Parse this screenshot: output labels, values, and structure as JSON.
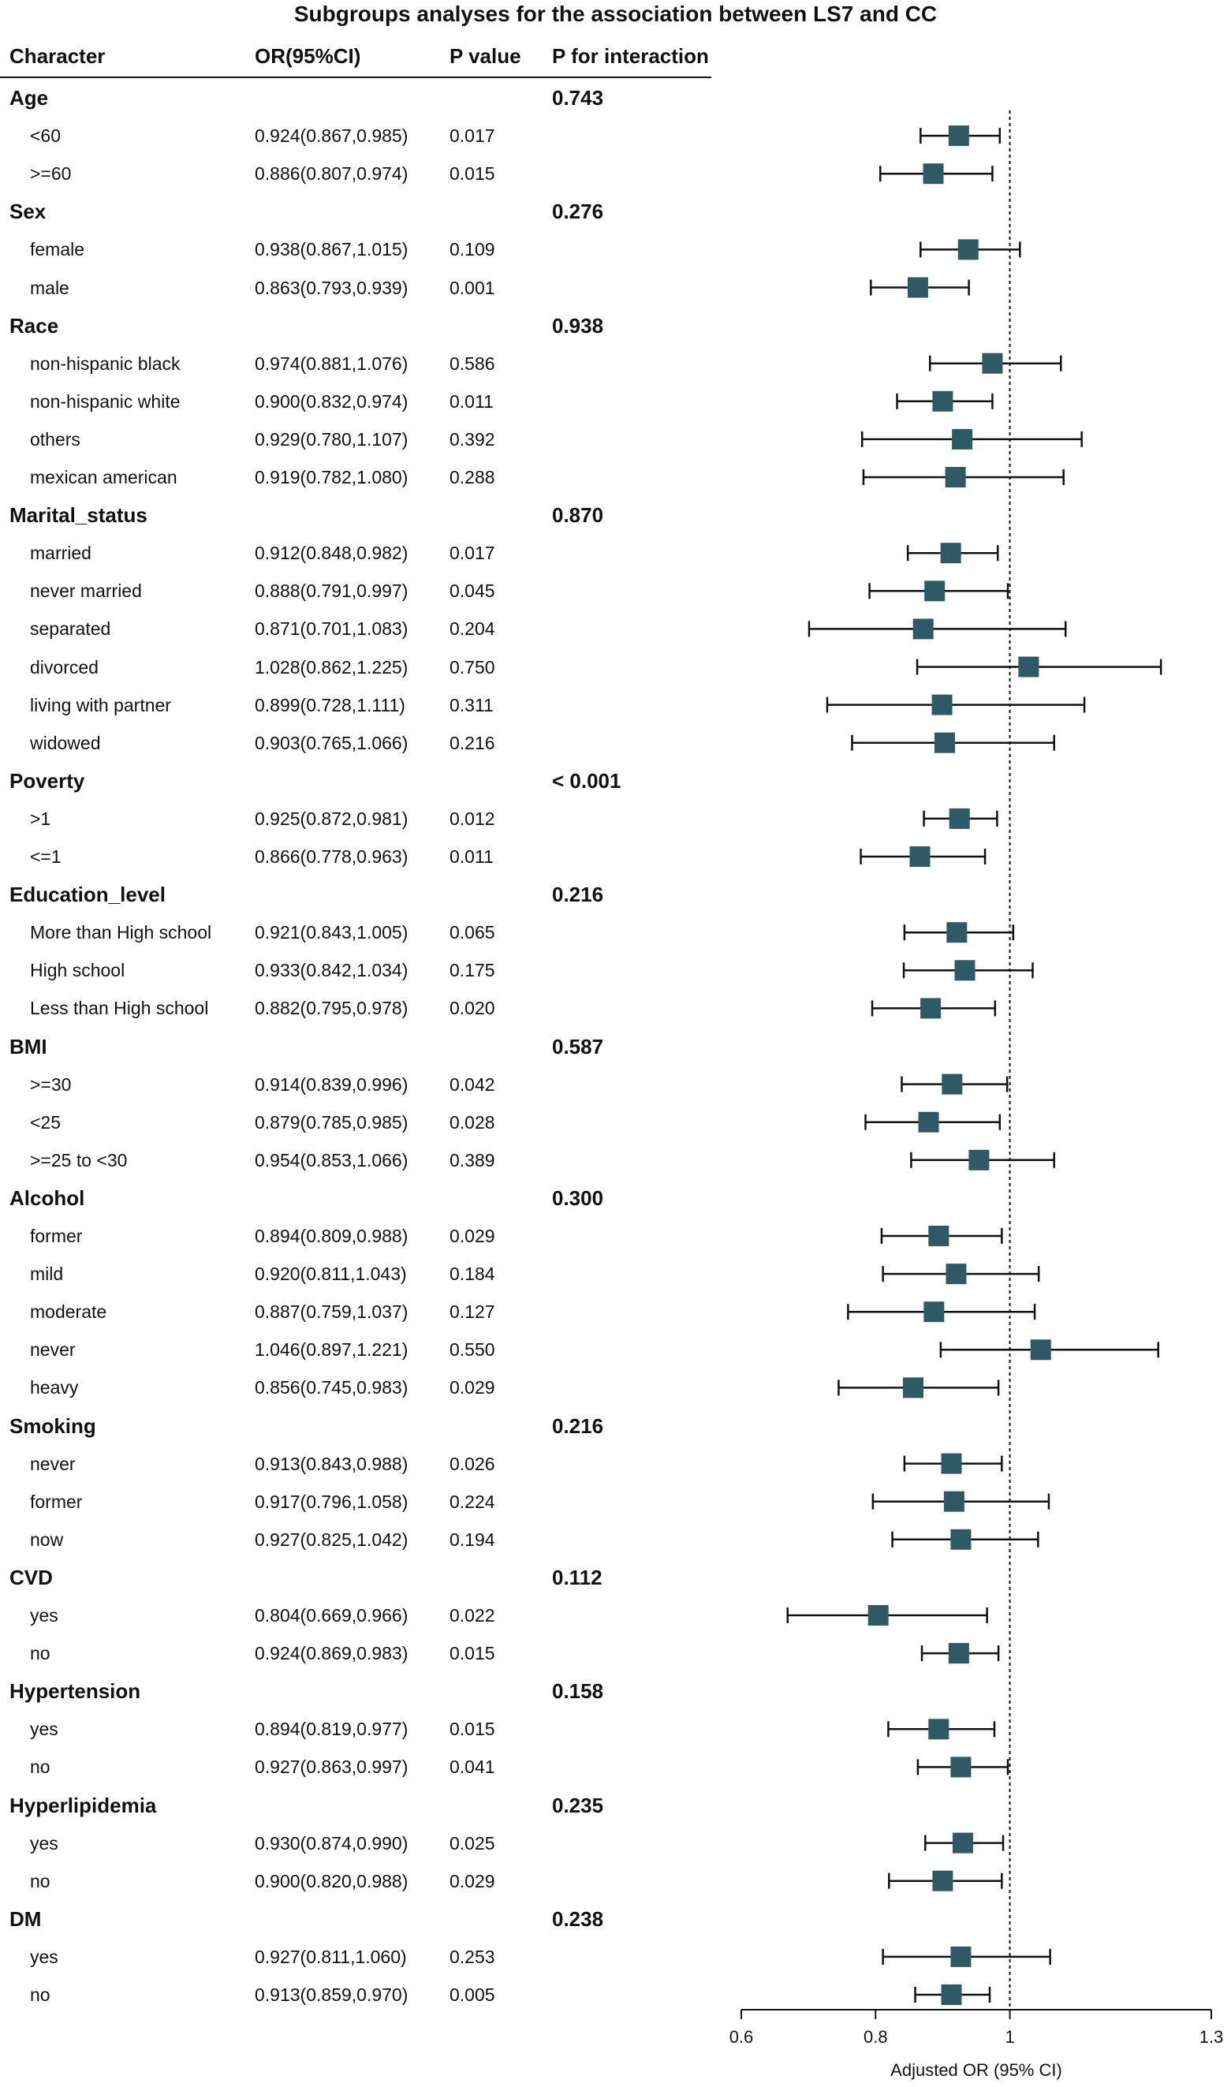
{
  "chart_data": {
    "type": "forest",
    "title": "Subgroups analyses for the association between LS7 and CC",
    "columns": {
      "character": "Character",
      "or": "OR(95%CI)",
      "pvalue": "P value",
      "pint": "P for interaction"
    },
    "xlabel": "Adjusted OR (95% CI)",
    "xlim": [
      0.6,
      1.3
    ],
    "xticks": [
      0.6,
      0.8,
      1,
      1.3
    ],
    "reference_line": 1,
    "groups": [
      {
        "name": "Age",
        "p_interaction": "0.743",
        "subgroups": [
          {
            "label": "<60",
            "or_text": "0.924(0.867,0.985)",
            "p": "0.017",
            "or": 0.924,
            "lo": 0.867,
            "hi": 0.985
          },
          {
            "label": ">=60",
            "or_text": "0.886(0.807,0.974)",
            "p": "0.015",
            "or": 0.886,
            "lo": 0.807,
            "hi": 0.974
          }
        ]
      },
      {
        "name": "Sex",
        "p_interaction": "0.276",
        "subgroups": [
          {
            "label": "female",
            "or_text": "0.938(0.867,1.015)",
            "p": "0.109",
            "or": 0.938,
            "lo": 0.867,
            "hi": 1.015
          },
          {
            "label": "male",
            "or_text": "0.863(0.793,0.939)",
            "p": "0.001",
            "or": 0.863,
            "lo": 0.793,
            "hi": 0.939
          }
        ]
      },
      {
        "name": "Race",
        "p_interaction": "0.938",
        "subgroups": [
          {
            "label": "non-hispanic black",
            "or_text": "0.974(0.881,1.076)",
            "p": "0.586",
            "or": 0.974,
            "lo": 0.881,
            "hi": 1.076
          },
          {
            "label": "non-hispanic white",
            "or_text": "0.900(0.832,0.974)",
            "p": "0.011",
            "or": 0.9,
            "lo": 0.832,
            "hi": 0.974
          },
          {
            "label": "others",
            "or_text": "0.929(0.780,1.107)",
            "p": "0.392",
            "or": 0.929,
            "lo": 0.78,
            "hi": 1.107
          },
          {
            "label": "mexican american",
            "or_text": "0.919(0.782,1.080)",
            "p": "0.288",
            "or": 0.919,
            "lo": 0.782,
            "hi": 1.08
          }
        ]
      },
      {
        "name": "Marital_status",
        "p_interaction": "0.870",
        "subgroups": [
          {
            "label": "married",
            "or_text": "0.912(0.848,0.982)",
            "p": "0.017",
            "or": 0.912,
            "lo": 0.848,
            "hi": 0.982
          },
          {
            "label": "never married",
            "or_text": "0.888(0.791,0.997)",
            "p": "0.045",
            "or": 0.888,
            "lo": 0.791,
            "hi": 0.997
          },
          {
            "label": "separated",
            "or_text": "0.871(0.701,1.083)",
            "p": "0.204",
            "or": 0.871,
            "lo": 0.701,
            "hi": 1.083
          },
          {
            "label": "divorced",
            "or_text": "1.028(0.862,1.225)",
            "p": "0.750",
            "or": 1.028,
            "lo": 0.862,
            "hi": 1.225
          },
          {
            "label": "living with partner",
            "or_text": "0.899(0.728,1.111)",
            "p": "0.311",
            "or": 0.899,
            "lo": 0.728,
            "hi": 1.111
          },
          {
            "label": "widowed",
            "or_text": "0.903(0.765,1.066)",
            "p": "0.216",
            "or": 0.903,
            "lo": 0.765,
            "hi": 1.066
          }
        ]
      },
      {
        "name": "Poverty",
        "p_interaction": "< 0.001",
        "subgroups": [
          {
            "label": ">1",
            "or_text": "0.925(0.872,0.981)",
            "p": "0.012",
            "or": 0.925,
            "lo": 0.872,
            "hi": 0.981
          },
          {
            "label": "<=1",
            "or_text": "0.866(0.778,0.963)",
            "p": "0.011",
            "or": 0.866,
            "lo": 0.778,
            "hi": 0.963
          }
        ]
      },
      {
        "name": "Education_level",
        "p_interaction": "0.216",
        "subgroups": [
          {
            "label": "More than High school",
            "or_text": "0.921(0.843,1.005)",
            "p": "0.065",
            "or": 0.921,
            "lo": 0.843,
            "hi": 1.005
          },
          {
            "label": "High school",
            "or_text": "0.933(0.842,1.034)",
            "p": "0.175",
            "or": 0.933,
            "lo": 0.842,
            "hi": 1.034
          },
          {
            "label": "Less than High school",
            "or_text": "0.882(0.795,0.978)",
            "p": "0.020",
            "or": 0.882,
            "lo": 0.795,
            "hi": 0.978
          }
        ]
      },
      {
        "name": "BMI",
        "p_interaction": "0.587",
        "subgroups": [
          {
            "label": ">=30",
            "or_text": "0.914(0.839,0.996)",
            "p": "0.042",
            "or": 0.914,
            "lo": 0.839,
            "hi": 0.996
          },
          {
            "label": "<25",
            "or_text": "0.879(0.785,0.985)",
            "p": "0.028",
            "or": 0.879,
            "lo": 0.785,
            "hi": 0.985
          },
          {
            "label": ">=25 to <30",
            "or_text": "0.954(0.853,1.066)",
            "p": "0.389",
            "or": 0.954,
            "lo": 0.853,
            "hi": 1.066
          }
        ]
      },
      {
        "name": "Alcohol",
        "p_interaction": "0.300",
        "subgroups": [
          {
            "label": "former",
            "or_text": "0.894(0.809,0.988)",
            "p": "0.029",
            "or": 0.894,
            "lo": 0.809,
            "hi": 0.988
          },
          {
            "label": "mild",
            "or_text": "0.920(0.811,1.043)",
            "p": "0.184",
            "or": 0.92,
            "lo": 0.811,
            "hi": 1.043
          },
          {
            "label": "moderate",
            "or_text": "0.887(0.759,1.037)",
            "p": "0.127",
            "or": 0.887,
            "lo": 0.759,
            "hi": 1.037
          },
          {
            "label": "never",
            "or_text": "1.046(0.897,1.221)",
            "p": "0.550",
            "or": 1.046,
            "lo": 0.897,
            "hi": 1.221
          },
          {
            "label": "heavy",
            "or_text": "0.856(0.745,0.983)",
            "p": "0.029",
            "or": 0.856,
            "lo": 0.745,
            "hi": 0.983
          }
        ]
      },
      {
        "name": "Smoking",
        "p_interaction": "0.216",
        "subgroups": [
          {
            "label": "never",
            "or_text": "0.913(0.843,0.988)",
            "p": "0.026",
            "or": 0.913,
            "lo": 0.843,
            "hi": 0.988
          },
          {
            "label": "former",
            "or_text": "0.917(0.796,1.058)",
            "p": "0.224",
            "or": 0.917,
            "lo": 0.796,
            "hi": 1.058
          },
          {
            "label": "now",
            "or_text": "0.927(0.825,1.042)",
            "p": "0.194",
            "or": 0.927,
            "lo": 0.825,
            "hi": 1.042
          }
        ]
      },
      {
        "name": "CVD",
        "p_interaction": "0.112",
        "subgroups": [
          {
            "label": "yes",
            "or_text": "0.804(0.669,0.966)",
            "p": "0.022",
            "or": 0.804,
            "lo": 0.669,
            "hi": 0.966
          },
          {
            "label": "no",
            "or_text": "0.924(0.869,0.983)",
            "p": "0.015",
            "or": 0.924,
            "lo": 0.869,
            "hi": 0.983
          }
        ]
      },
      {
        "name": "Hypertension",
        "p_interaction": "0.158",
        "subgroups": [
          {
            "label": "yes",
            "or_text": "0.894(0.819,0.977)",
            "p": "0.015",
            "or": 0.894,
            "lo": 0.819,
            "hi": 0.977
          },
          {
            "label": "no",
            "or_text": "0.927(0.863,0.997)",
            "p": "0.041",
            "or": 0.927,
            "lo": 0.863,
            "hi": 0.997
          }
        ]
      },
      {
        "name": "Hyperlipidemia",
        "p_interaction": "0.235",
        "subgroups": [
          {
            "label": "yes",
            "or_text": "0.930(0.874,0.990)",
            "p": "0.025",
            "or": 0.93,
            "lo": 0.874,
            "hi": 0.99
          },
          {
            "label": "no",
            "or_text": "0.900(0.820,0.988)",
            "p": "0.029",
            "or": 0.9,
            "lo": 0.82,
            "hi": 0.988
          }
        ]
      },
      {
        "name": "DM",
        "p_interaction": "0.238",
        "subgroups": [
          {
            "label": "yes",
            "or_text": "0.927(0.811,1.060)",
            "p": "0.253",
            "or": 0.927,
            "lo": 0.811,
            "hi": 1.06
          },
          {
            "label": "no",
            "or_text": "0.913(0.859,0.970)",
            "p": "0.005",
            "or": 0.913,
            "lo": 0.859,
            "hi": 0.97
          }
        ]
      }
    ]
  },
  "colors": {
    "marker": "#2e5a66",
    "line": "#111111"
  }
}
